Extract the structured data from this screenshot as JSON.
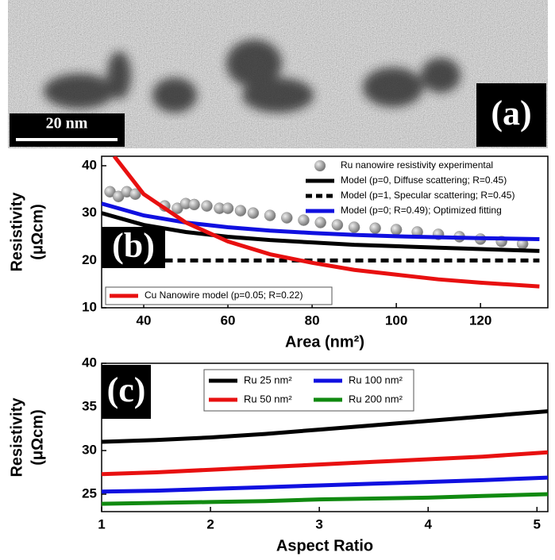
{
  "image": {
    "scale_bar": "20 nm",
    "label": "(a)"
  },
  "chart_data": [
    {
      "type": "line",
      "panel_label": "(b)",
      "x_label": "Area (nm²)",
      "y_label": "Resistivity",
      "y_unit": "(μΩcm)",
      "xlim": [
        30,
        136
      ],
      "ylim": [
        10,
        42
      ],
      "xticks": [
        40,
        60,
        80,
        100,
        120
      ],
      "yticks": [
        10,
        20,
        30,
        40
      ],
      "legend_loc": "upper right",
      "series": [
        {
          "name": "Ru nanowire resistivity experimental",
          "color": "#8c8c8c",
          "linestyle": "none",
          "marker": "circle",
          "x": [
            32,
            34,
            36,
            38,
            45,
            48,
            50,
            52,
            55,
            58,
            60,
            63,
            66,
            70,
            74,
            78,
            82,
            86,
            90,
            95,
            100,
            105,
            110,
            115,
            120,
            125,
            130
          ],
          "values": [
            34.5,
            33.5,
            34.5,
            34,
            31.5,
            31,
            32,
            31.8,
            31.5,
            31,
            31,
            30.5,
            30,
            29.5,
            29,
            28.5,
            28,
            27.5,
            27,
            26.8,
            26.5,
            26,
            25.5,
            25,
            24.5,
            24,
            23.5
          ]
        },
        {
          "name": "Model (p=0, Diffuse scattering; R=0.45)",
          "color": "#000000",
          "linestyle": "solid",
          "x": [
            30,
            40,
            50,
            60,
            70,
            80,
            90,
            100,
            110,
            120,
            134
          ],
          "values": [
            30,
            27.5,
            26,
            25,
            24.3,
            23.8,
            23.3,
            23,
            22.7,
            22.4,
            22
          ]
        },
        {
          "name": "Model (p=1, Specular scattering; R=0.45)",
          "color": "#000000",
          "linestyle": "dashed",
          "x": [
            45,
            134
          ],
          "values": [
            20,
            20
          ]
        },
        {
          "name": "Model (p=0; R=0.49); Optimized fitting",
          "color": "#1010e0",
          "linestyle": "solid",
          "x": [
            30,
            40,
            50,
            60,
            70,
            80,
            90,
            100,
            110,
            120,
            134
          ],
          "values": [
            32,
            29.5,
            28,
            27,
            26.3,
            25.8,
            25.4,
            25.1,
            24.9,
            24.7,
            24.5
          ]
        },
        {
          "name": "Cu Nanowire model (p=0.05; R=0.22)",
          "color": "#e81010",
          "linestyle": "solid",
          "legend_loc": "lower left",
          "x": [
            33,
            40,
            50,
            60,
            70,
            80,
            90,
            100,
            110,
            120,
            134
          ],
          "values": [
            42,
            34,
            28,
            24,
            21.3,
            19.5,
            18,
            17,
            16,
            15.3,
            14.5
          ]
        }
      ]
    },
    {
      "type": "line",
      "panel_label": "(c)",
      "x_label": "Aspect Ratio",
      "y_label": "Resistivity",
      "y_unit": "(μΩcm)",
      "xlim": [
        1,
        5.1
      ],
      "ylim": [
        23,
        40
      ],
      "xticks": [
        1,
        2,
        3,
        4,
        5
      ],
      "yticks": [
        25,
        30,
        35,
        40
      ],
      "legend_loc": "upper center",
      "legend_columns": 2,
      "series": [
        {
          "name": "Ru 25 nm²",
          "color": "#000000",
          "linestyle": "solid",
          "x": [
            1,
            1.5,
            2,
            2.5,
            3,
            3.5,
            4,
            4.5,
            5.1
          ],
          "values": [
            31,
            31.2,
            31.5,
            31.9,
            32.4,
            32.9,
            33.4,
            33.9,
            34.5
          ]
        },
        {
          "name": "Ru 50 nm²",
          "color": "#e81010",
          "linestyle": "solid",
          "x": [
            1,
            1.5,
            2,
            2.5,
            3,
            3.5,
            4,
            4.5,
            5.1
          ],
          "values": [
            27.3,
            27.5,
            27.8,
            28.1,
            28.4,
            28.7,
            29.0,
            29.3,
            29.8
          ]
        },
        {
          "name": "Ru 100 nm²",
          "color": "#1010e0",
          "linestyle": "solid",
          "x": [
            1,
            1.5,
            2,
            2.5,
            3,
            3.5,
            4,
            4.5,
            5.1
          ],
          "values": [
            25.3,
            25.4,
            25.6,
            25.8,
            26.0,
            26.2,
            26.4,
            26.6,
            26.9
          ]
        },
        {
          "name": "Ru 200 nm²",
          "color": "#108a10",
          "linestyle": "solid",
          "x": [
            1,
            1.5,
            2,
            2.5,
            3,
            3.5,
            4,
            4.5,
            5.1
          ],
          "values": [
            23.9,
            24.0,
            24.1,
            24.2,
            24.4,
            24.5,
            24.6,
            24.8,
            25.0
          ]
        }
      ]
    }
  ]
}
